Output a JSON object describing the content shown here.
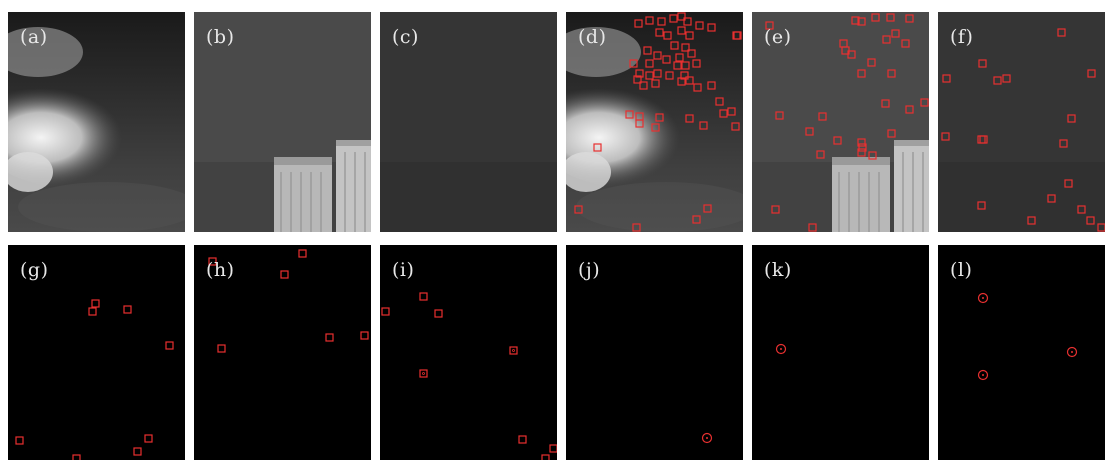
{
  "panels": [
    {
      "label": "(a)",
      "scene": "clouds"
    },
    {
      "label": "(b)",
      "scene": "building"
    },
    {
      "label": "(c)",
      "scene": "dark"
    },
    {
      "label": "(d)",
      "scene": "clouds"
    },
    {
      "label": "(e)",
      "scene": "building"
    },
    {
      "label": "(f)",
      "scene": "dark"
    },
    {
      "label": "(g)",
      "scene": "black"
    },
    {
      "label": "(h)",
      "scene": "black"
    },
    {
      "label": "(i)",
      "scene": "black"
    },
    {
      "label": "(j)",
      "scene": "black"
    },
    {
      "label": "(k)",
      "scene": "black"
    },
    {
      "label": "(l)",
      "scene": "black"
    }
  ],
  "colors": {
    "marker": "#e83030",
    "label_text": "#e8e8e8",
    "background": "#ffffff"
  },
  "marker_shapes": {
    "(d)": "square",
    "(e)": "square",
    "(f)": "square",
    "(g)": "square",
    "(h)": "square",
    "(i)": "square",
    "(j)": "circle",
    "(k)": "circle",
    "(l)": "circle"
  }
}
